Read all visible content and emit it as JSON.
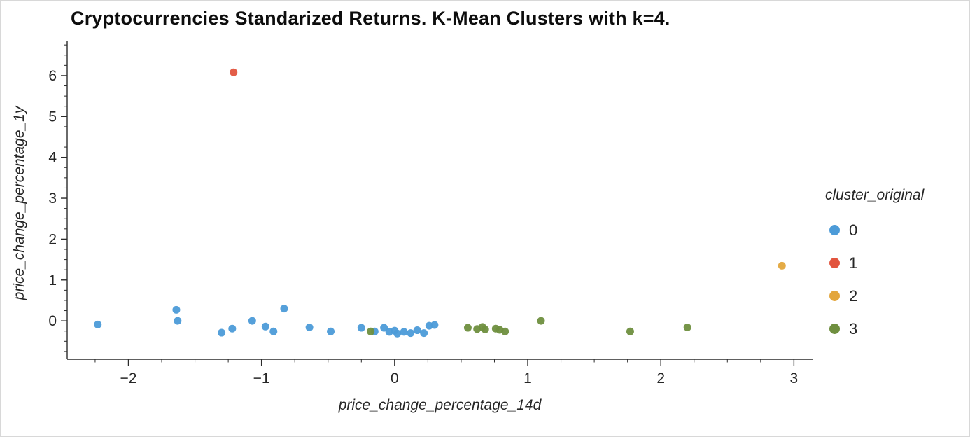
{
  "title": "Cryptocurrencies Standarized Returns. K-Mean Clusters with k=4.",
  "chart_data": {
    "type": "scatter",
    "title": "Cryptocurrencies Standarized Returns. K-Mean Clusters with k=4.",
    "xlabel": "price_change_percentage_14d",
    "ylabel": "price_change_percentage_1y",
    "xlim": [
      -2.46,
      3.14
    ],
    "ylim": [
      -0.94,
      6.77
    ],
    "x_ticks": [
      -2,
      -1,
      0,
      1,
      2,
      3
    ],
    "y_ticks": [
      0,
      1,
      2,
      3,
      4,
      5,
      6
    ],
    "grid": false,
    "legend_position": "right",
    "legend_title": "cluster_original",
    "axis_color": "#2b2b2b",
    "series": [
      {
        "name": "0",
        "color": "#4C9BD8",
        "points": [
          [
            -2.23,
            -0.09
          ],
          [
            -1.64,
            0.27
          ],
          [
            -1.63,
            0.0
          ],
          [
            -1.3,
            -0.29
          ],
          [
            -1.22,
            -0.19
          ],
          [
            -1.07,
            0.0
          ],
          [
            -0.97,
            -0.14
          ],
          [
            -0.91,
            -0.26
          ],
          [
            -0.83,
            0.3
          ],
          [
            -0.64,
            -0.16
          ],
          [
            -0.48,
            -0.26
          ],
          [
            -0.25,
            -0.17
          ],
          [
            -0.15,
            -0.26
          ],
          [
            -0.08,
            -0.17
          ],
          [
            -0.04,
            -0.27
          ],
          [
            0.0,
            -0.24
          ],
          [
            0.02,
            -0.31
          ],
          [
            0.07,
            -0.27
          ],
          [
            0.12,
            -0.3
          ],
          [
            0.17,
            -0.23
          ],
          [
            0.22,
            -0.3
          ],
          [
            0.26,
            -0.12
          ],
          [
            0.3,
            -0.1
          ]
        ]
      },
      {
        "name": "1",
        "color": "#E2543E",
        "points": [
          [
            -1.21,
            6.08
          ]
        ]
      },
      {
        "name": "2",
        "color": "#E3A63C",
        "points": [
          [
            2.91,
            1.35
          ]
        ]
      },
      {
        "name": "3",
        "color": "#6F8F3F",
        "points": [
          [
            -0.18,
            -0.26
          ],
          [
            0.55,
            -0.17
          ],
          [
            0.62,
            -0.2
          ],
          [
            0.66,
            -0.15
          ],
          [
            0.68,
            -0.21
          ],
          [
            0.76,
            -0.19
          ],
          [
            0.79,
            -0.22
          ],
          [
            0.83,
            -0.26
          ],
          [
            1.1,
            0.0
          ],
          [
            1.77,
            -0.26
          ],
          [
            2.2,
            -0.16
          ]
        ]
      }
    ]
  }
}
